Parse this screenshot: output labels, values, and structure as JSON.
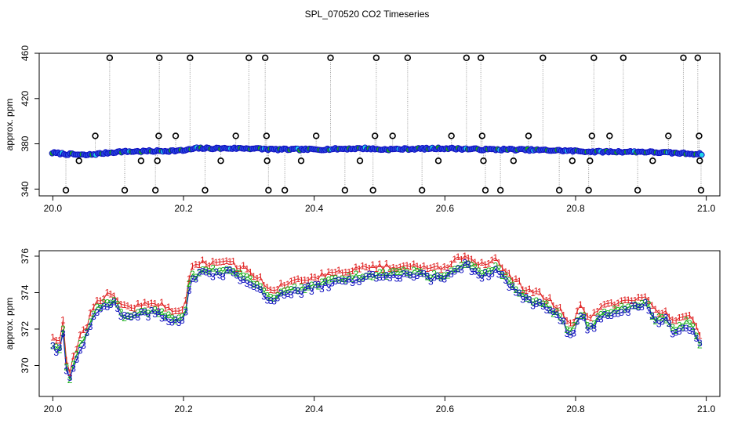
{
  "title": "SPL_070520  CO2 Timeseries",
  "colors": {
    "axis": "#000000",
    "gray": "#9a9a9a",
    "ch1": "#e02020",
    "ch2": "#18b018",
    "ch3": "#1010c0",
    "fill": "#2848e0",
    "cyan": "#20d8e8"
  },
  "chart_data": [
    {
      "type": "scatter",
      "panel": "top",
      "title": "SPL_070520  CO2 Timeseries",
      "xlabel": "",
      "ylabel": "approx. ppm",
      "xlim": [
        20.0,
        21.0
      ],
      "ylim": [
        334,
        460
      ],
      "xticks": [
        "20.0",
        "20.2",
        "20.4",
        "20.6",
        "20.8",
        "21.0"
      ],
      "yticks": [
        "340",
        "380",
        "420",
        "460"
      ],
      "baseline": [
        [
          20.0,
          372
        ],
        [
          20.02,
          371
        ],
        [
          20.05,
          370
        ],
        [
          20.1,
          373
        ],
        [
          20.2,
          374
        ],
        [
          20.22,
          376
        ],
        [
          20.3,
          376
        ],
        [
          20.34,
          375
        ],
        [
          20.4,
          375
        ],
        [
          20.48,
          376
        ],
        [
          20.5,
          375
        ],
        [
          20.6,
          376
        ],
        [
          20.66,
          375
        ],
        [
          20.7,
          375
        ],
        [
          20.78,
          374
        ],
        [
          20.83,
          373
        ],
        [
          20.9,
          373
        ],
        [
          20.99,
          371
        ]
      ],
      "outliers": [
        [
          20.02,
          339
        ],
        [
          20.04,
          365
        ],
        [
          20.065,
          387
        ],
        [
          20.087,
          456
        ],
        [
          20.11,
          339
        ],
        [
          20.135,
          365
        ],
        [
          20.157,
          339
        ],
        [
          20.16,
          365
        ],
        [
          20.162,
          387
        ],
        [
          20.163,
          456
        ],
        [
          20.188,
          387
        ],
        [
          20.21,
          456
        ],
        [
          20.233,
          339
        ],
        [
          20.257,
          365
        ],
        [
          20.28,
          387
        ],
        [
          20.3,
          456
        ],
        [
          20.325,
          456
        ],
        [
          20.327,
          387
        ],
        [
          20.328,
          365
        ],
        [
          20.33,
          339
        ],
        [
          20.355,
          339
        ],
        [
          20.38,
          365
        ],
        [
          20.403,
          387
        ],
        [
          20.425,
          456
        ],
        [
          20.447,
          339
        ],
        [
          20.47,
          365
        ],
        [
          20.49,
          339
        ],
        [
          20.493,
          387
        ],
        [
          20.495,
          456
        ],
        [
          20.52,
          387
        ],
        [
          20.543,
          456
        ],
        [
          20.565,
          339
        ],
        [
          20.59,
          365
        ],
        [
          20.61,
          387
        ],
        [
          20.633,
          456
        ],
        [
          20.655,
          456
        ],
        [
          20.657,
          387
        ],
        [
          20.659,
          365
        ],
        [
          20.662,
          339
        ],
        [
          20.685,
          339
        ],
        [
          20.705,
          365
        ],
        [
          20.728,
          387
        ],
        [
          20.75,
          456
        ],
        [
          20.775,
          339
        ],
        [
          20.795,
          365
        ],
        [
          20.82,
          339
        ],
        [
          20.822,
          365
        ],
        [
          20.825,
          387
        ],
        [
          20.828,
          456
        ],
        [
          20.852,
          387
        ],
        [
          20.873,
          456
        ],
        [
          20.895,
          339
        ],
        [
          20.918,
          365
        ],
        [
          20.942,
          387
        ],
        [
          20.965,
          456
        ],
        [
          20.987,
          456
        ],
        [
          20.989,
          387
        ],
        [
          20.99,
          365
        ],
        [
          20.992,
          339
        ]
      ]
    },
    {
      "type": "line",
      "panel": "bottom",
      "xlabel": "",
      "ylabel": "approx. ppm",
      "xlim": [
        20.0,
        21.0
      ],
      "ylim": [
        368.3,
        376.3
      ],
      "xticks": [
        "20.0",
        "20.2",
        "20.4",
        "20.6",
        "20.8",
        "21.0"
      ],
      "yticks": [
        "370",
        "372",
        "374",
        "376"
      ],
      "marker_labels": [
        "1",
        "2",
        "3"
      ],
      "series_anchors": [
        [
          20.0,
          371.2
        ],
        [
          20.01,
          370.9
        ],
        [
          20.018,
          372.3
        ],
        [
          20.022,
          368.8
        ],
        [
          20.03,
          369.8
        ],
        [
          20.04,
          371.0
        ],
        [
          20.05,
          371.6
        ],
        [
          20.06,
          372.6
        ],
        [
          20.07,
          373.2
        ],
        [
          20.09,
          373.6
        ],
        [
          20.1,
          373.2
        ],
        [
          20.11,
          372.7
        ],
        [
          20.13,
          372.9
        ],
        [
          20.16,
          373.0
        ],
        [
          20.18,
          372.6
        ],
        [
          20.2,
          372.6
        ],
        [
          20.205,
          373.4
        ],
        [
          20.21,
          374.8
        ],
        [
          20.23,
          375.2
        ],
        [
          20.27,
          375.2
        ],
        [
          20.3,
          374.8
        ],
        [
          20.32,
          374.2
        ],
        [
          20.33,
          373.6
        ],
        [
          20.35,
          374.0
        ],
        [
          20.4,
          374.4
        ],
        [
          20.45,
          374.8
        ],
        [
          20.49,
          375.0
        ],
        [
          20.5,
          375.0
        ],
        [
          20.55,
          375.1
        ],
        [
          20.58,
          374.9
        ],
        [
          20.6,
          375.0
        ],
        [
          20.63,
          375.6
        ],
        [
          20.66,
          375.0
        ],
        [
          20.68,
          375.4
        ],
        [
          20.7,
          374.5
        ],
        [
          20.72,
          373.8
        ],
        [
          20.75,
          373.4
        ],
        [
          20.78,
          372.6
        ],
        [
          20.79,
          371.8
        ],
        [
          20.8,
          372.2
        ],
        [
          20.81,
          373.0
        ],
        [
          20.82,
          372.0
        ],
        [
          20.84,
          372.8
        ],
        [
          20.88,
          373.2
        ],
        [
          20.9,
          373.3
        ],
        [
          20.91,
          373.5
        ],
        [
          20.92,
          372.5
        ],
        [
          20.94,
          372.6
        ],
        [
          20.95,
          371.8
        ],
        [
          20.97,
          372.4
        ],
        [
          20.98,
          372.0
        ],
        [
          20.99,
          371.2
        ]
      ]
    }
  ]
}
